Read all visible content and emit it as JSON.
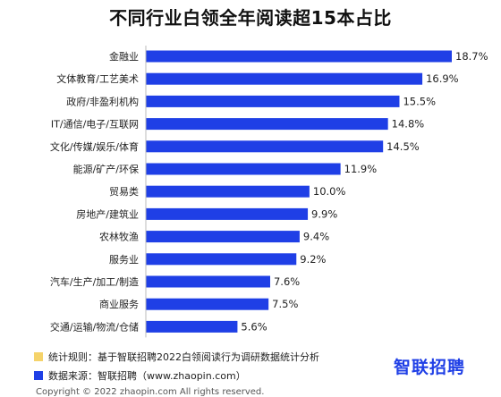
{
  "title": "不同行业白领全年阅读超15本占比",
  "chart_data": {
    "type": "bar",
    "orientation": "horizontal",
    "title": "不同行业白领全年阅读超15本占比",
    "categories": [
      "金融业",
      "文体教育/工艺美术",
      "政府/非盈利机构",
      "IT/通信/电子/互联网",
      "文化/传媒/娱乐/体育",
      "能源/矿产/环保",
      "贸易类",
      "房地产/建筑业",
      "农林牧渔",
      "服务业",
      "汽车/生产/加工/制造",
      "商业服务",
      "交通/运输/物流/仓储"
    ],
    "values": [
      18.7,
      16.9,
      15.5,
      14.8,
      14.5,
      11.9,
      10.0,
      9.9,
      9.4,
      9.2,
      7.6,
      7.5,
      5.6
    ],
    "value_labels": [
      "18.7%",
      "16.9%",
      "15.5%",
      "14.8%",
      "14.5%",
      "11.9%",
      "10.0%",
      "9.9%",
      "9.4%",
      "9.2%",
      "7.6%",
      "7.5%",
      "5.6%"
    ],
    "xlim": [
      0,
      18.7
    ],
    "grid": false,
    "colors": {
      "bar": "#1f3fe6"
    }
  },
  "footer": {
    "rule_label": "统计规则：基于智联招聘2022白领阅读行为调研数据统计分析",
    "source_label": "数据来源：智联招聘（www.zhaopin.com）",
    "rule_color": "#f5d36a",
    "source_color": "#1f3fe6"
  },
  "logo": "智联招聘",
  "copyright": "Copyright © 2022 zhaopin.com All rights reserved."
}
